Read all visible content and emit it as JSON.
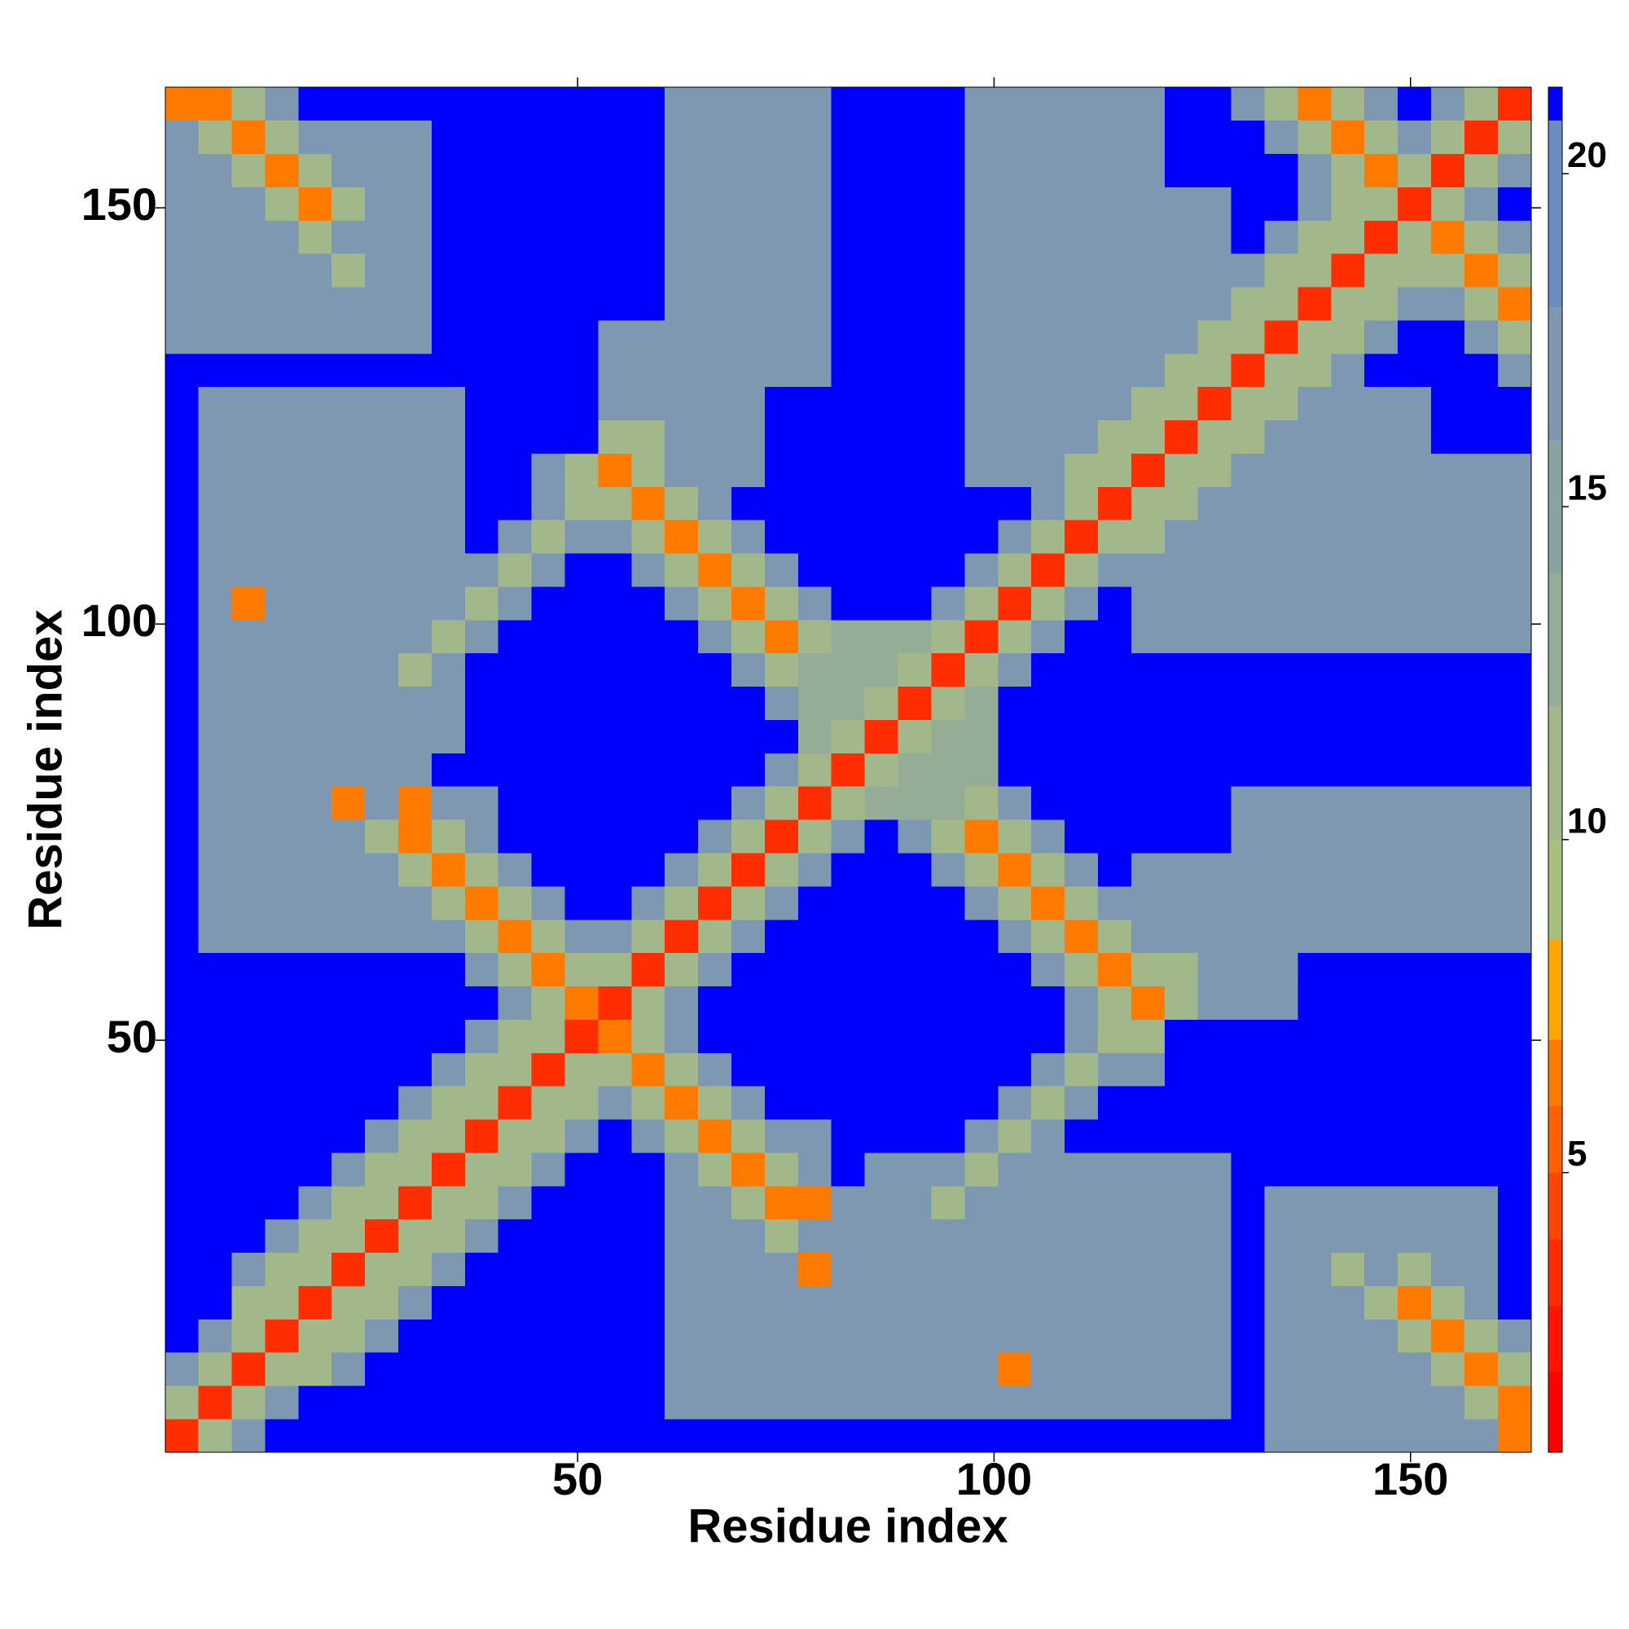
{
  "chart_data": {
    "type": "heatmap",
    "xlabel": "Residue index",
    "ylabel": "Residue index",
    "xlim": [
      0.5,
      164.5
    ],
    "ylim": [
      0.5,
      164.5
    ],
    "xticks": [
      50,
      100,
      150
    ],
    "yticks": [
      50,
      100,
      150
    ],
    "bins": [
      0.5,
      4.5,
      8.5,
      12.5,
      16.5,
      20.5,
      24.5,
      28.5,
      32.5,
      36.5,
      40.5,
      44.5,
      48.5,
      52.5,
      56.5,
      60.5,
      64.5,
      68.5,
      72.5,
      76.5,
      80.5,
      84.5,
      88.5,
      92.5,
      96.5,
      100.5,
      104.5,
      108.5,
      112.5,
      116.5,
      120.5,
      124.5,
      128.5,
      132.5,
      136.5,
      140.5,
      144.5,
      148.5,
      152.5,
      156.5,
      160.5,
      164.5
    ],
    "symmetric": true,
    "matrix": [
      [
        3,
        11,
        16,
        21,
        21,
        21,
        21,
        21,
        21,
        21,
        21,
        21,
        21,
        21,
        21,
        21,
        21,
        21,
        21,
        21,
        21,
        21,
        21,
        21,
        21,
        21,
        21,
        21,
        21,
        21,
        21,
        21,
        21,
        16,
        16,
        16,
        16,
        16,
        16,
        16,
        6
      ],
      [
        3,
        11,
        16,
        21,
        21,
        21,
        21,
        21,
        21,
        21,
        21,
        21,
        21,
        21,
        16,
        16,
        16,
        16,
        16,
        16,
        16,
        16,
        16,
        16,
        16,
        16,
        16,
        16,
        16,
        16,
        16,
        21,
        16,
        16,
        16,
        16,
        16,
        16,
        11,
        6
      ],
      [
        3,
        11,
        11,
        16,
        21,
        21,
        21,
        21,
        21,
        21,
        21,
        21,
        21,
        16,
        16,
        16,
        16,
        16,
        16,
        16,
        16,
        16,
        16,
        6,
        16,
        16,
        16,
        16,
        16,
        16,
        21,
        16,
        16,
        16,
        16,
        16,
        11,
        6,
        11
      ],
      [
        3,
        11,
        11,
        16,
        21,
        21,
        21,
        21,
        21,
        21,
        21,
        21,
        16,
        16,
        16,
        16,
        16,
        16,
        16,
        16,
        16,
        16,
        16,
        16,
        16,
        16,
        16,
        16,
        16,
        21,
        16,
        16,
        16,
        16,
        11,
        6,
        11,
        16
      ],
      [
        3,
        11,
        11,
        16,
        21,
        21,
        21,
        21,
        21,
        21,
        21,
        16,
        16,
        16,
        16,
        16,
        16,
        16,
        16,
        16,
        16,
        16,
        16,
        16,
        16,
        16,
        16,
        16,
        21,
        16,
        16,
        16,
        11,
        6,
        11,
        16,
        21
      ],
      [
        3,
        11,
        11,
        16,
        21,
        21,
        21,
        21,
        21,
        21,
        16,
        16,
        16,
        16,
        6,
        16,
        16,
        16,
        16,
        16,
        16,
        16,
        16,
        16,
        16,
        16,
        16,
        21,
        16,
        16,
        11,
        16,
        11,
        16,
        16,
        21
      ],
      [
        3,
        11,
        11,
        16,
        21,
        21,
        21,
        21,
        21,
        16,
        16,
        16,
        11,
        16,
        16,
        16,
        16,
        16,
        16,
        16,
        16,
        16,
        16,
        16,
        16,
        16,
        21,
        16,
        16,
        16,
        16,
        16,
        16,
        16,
        21
      ],
      [
        3,
        11,
        11,
        16,
        21,
        21,
        21,
        21,
        16,
        16,
        11,
        6,
        6,
        16,
        16,
        16,
        11,
        16,
        16,
        16,
        16,
        16,
        16,
        16,
        16,
        21,
        16,
        16,
        16,
        16,
        16,
        16,
        16,
        21
      ],
      [
        3,
        11,
        11,
        16,
        21,
        21,
        21,
        16,
        11,
        6,
        11,
        16,
        21,
        16,
        16,
        16,
        11,
        16,
        16,
        16,
        16,
        16,
        16,
        16,
        21,
        21,
        21,
        21,
        21,
        21,
        21,
        21,
        21
      ],
      [
        3,
        11,
        11,
        16,
        21,
        16,
        11,
        6,
        11,
        16,
        16,
        21,
        21,
        21,
        21,
        16,
        11,
        16,
        21,
        21,
        21,
        21,
        21,
        21,
        21,
        21,
        21,
        21,
        21,
        21,
        21,
        21
      ],
      [
        3,
        11,
        11,
        16,
        11,
        6,
        11,
        16,
        21,
        21,
        21,
        21,
        21,
        21,
        21,
        16,
        11,
        16,
        21,
        21,
        21,
        21,
        21,
        21,
        21,
        21,
        21,
        21,
        21,
        21,
        21
      ],
      [
        3,
        11,
        11,
        6,
        11,
        16,
        21,
        21,
        21,
        21,
        21,
        21,
        21,
        21,
        21,
        16,
        11,
        16,
        16,
        21,
        21,
        21,
        21,
        21,
        21,
        21,
        21,
        21,
        21,
        21
      ],
      [
        3,
        6,
        11,
        16,
        21,
        21,
        21,
        21,
        21,
        21,
        21,
        21,
        21,
        21,
        21,
        16,
        11,
        11,
        21,
        21,
        21,
        21,
        21,
        21,
        21,
        21,
        21,
        21,
        21
      ],
      [
        3,
        11,
        16,
        21,
        21,
        21,
        21,
        21,
        21,
        21,
        21,
        21,
        21,
        21,
        16,
        11,
        6,
        11,
        16,
        16,
        16,
        21,
        21,
        21,
        21,
        21,
        21,
        21
      ],
      [
        3,
        11,
        16,
        21,
        21,
        21,
        21,
        21,
        21,
        21,
        21,
        21,
        16,
        11,
        6,
        11,
        11,
        16,
        16,
        16,
        21,
        21,
        21,
        21,
        21,
        21,
        21
      ],
      [
        3,
        11,
        16,
        21,
        21,
        21,
        21,
        21,
        21,
        21,
        16,
        11,
        6,
        11,
        16,
        16,
        16,
        16,
        16,
        16,
        16,
        16,
        16,
        16,
        16,
        16
      ],
      [
        3,
        11,
        16,
        21,
        21,
        21,
        21,
        21,
        16,
        11,
        6,
        11,
        16,
        16,
        16,
        16,
        16,
        16,
        16,
        16,
        16,
        16,
        16,
        16,
        16
      ],
      [
        3,
        11,
        16,
        21,
        21,
        21,
        16,
        11,
        6,
        11,
        16,
        21,
        16,
        16,
        16,
        16,
        16,
        16,
        16,
        16,
        16,
        16,
        16,
        16
      ],
      [
        3,
        11,
        16,
        21,
        16,
        11,
        6,
        11,
        16,
        21,
        21,
        21,
        21,
        21,
        16,
        16,
        16,
        16,
        16,
        16,
        16,
        16,
        16
      ],
      [
        3,
        11,
        13,
        13,
        13,
        11,
        16,
        21,
        21,
        21,
        21,
        21,
        21,
        16,
        16,
        16,
        16,
        16,
        16,
        16,
        16,
        16
      ],
      [
        3,
        11,
        13,
        13,
        13,
        21,
        21,
        21,
        21,
        21,
        21,
        21,
        21,
        21,
        21,
        21,
        21,
        21,
        21,
        21,
        21
      ],
      [
        3,
        11,
        13,
        13,
        21,
        21,
        21,
        21,
        21,
        21,
        21,
        21,
        21,
        21,
        21,
        21,
        21,
        21,
        21,
        21
      ],
      [
        3,
        11,
        13,
        21,
        21,
        21,
        21,
        21,
        21,
        21,
        21,
        21,
        21,
        21,
        21,
        21,
        21,
        21,
        21
      ],
      [
        3,
        11,
        16,
        21,
        21,
        21,
        21,
        21,
        21,
        21,
        21,
        21,
        21,
        21,
        21,
        21,
        21,
        21
      ],
      [
        3,
        11,
        16,
        21,
        21,
        16,
        16,
        16,
        16,
        16,
        16,
        16,
        16,
        16,
        16,
        16,
        16
      ],
      [
        3,
        11,
        16,
        21,
        16,
        16,
        16,
        16,
        16,
        16,
        16,
        16,
        16,
        16,
        16,
        16
      ],
      [
        3,
        11,
        16,
        16,
        16,
        16,
        16,
        16,
        16,
        16,
        16,
        16,
        16,
        16,
        16
      ],
      [
        3,
        11,
        11,
        16,
        16,
        16,
        16,
        16,
        16,
        16,
        16,
        16,
        16,
        16
      ],
      [
        3,
        11,
        11,
        16,
        16,
        16,
        16,
        16,
        16,
        16,
        16,
        16,
        16
      ],
      [
        3,
        11,
        11,
        16,
        16,
        16,
        16,
        16,
        16,
        16,
        16,
        16
      ],
      [
        3,
        11,
        11,
        16,
        16,
        16,
        16,
        16,
        21,
        21,
        21
      ],
      [
        3,
        11,
        11,
        16,
        16,
        16,
        16,
        21,
        21,
        21
      ],
      [
        3,
        11,
        11,
        16,
        21,
        21,
        21,
        21,
        16
      ],
      [
        3,
        11,
        11,
        16,
        21,
        21,
        16,
        11
      ],
      [
        3,
        11,
        11,
        16,
        16,
        11,
        6
      ],
      [
        3,
        11,
        11,
        11,
        6,
        11
      ],
      [
        3,
        11,
        6,
        11,
        16
      ],
      [
        3,
        11,
        16,
        21
      ],
      [
        3,
        11,
        16
      ],
      [
        3,
        11
      ],
      [
        3
      ]
    ],
    "colorbar": {
      "lim": [
        0.8,
        21.3
      ],
      "ticks": [
        5,
        10,
        15,
        20
      ],
      "levels": [
        0.8,
        2,
        3,
        4,
        5,
        6,
        7,
        8.5,
        10,
        12,
        14,
        16,
        18,
        20.8,
        21.3
      ],
      "colors": [
        "#ff0000",
        "#ff1400",
        "#ff2d00",
        "#ff4600",
        "#ff6000",
        "#ff7a00",
        "#ffa500",
        "#a8bf7e",
        "#a2b88a",
        "#95ad97",
        "#89a3a3",
        "#7d98b0",
        "#6a8cbf",
        "#0000ff"
      ]
    }
  }
}
